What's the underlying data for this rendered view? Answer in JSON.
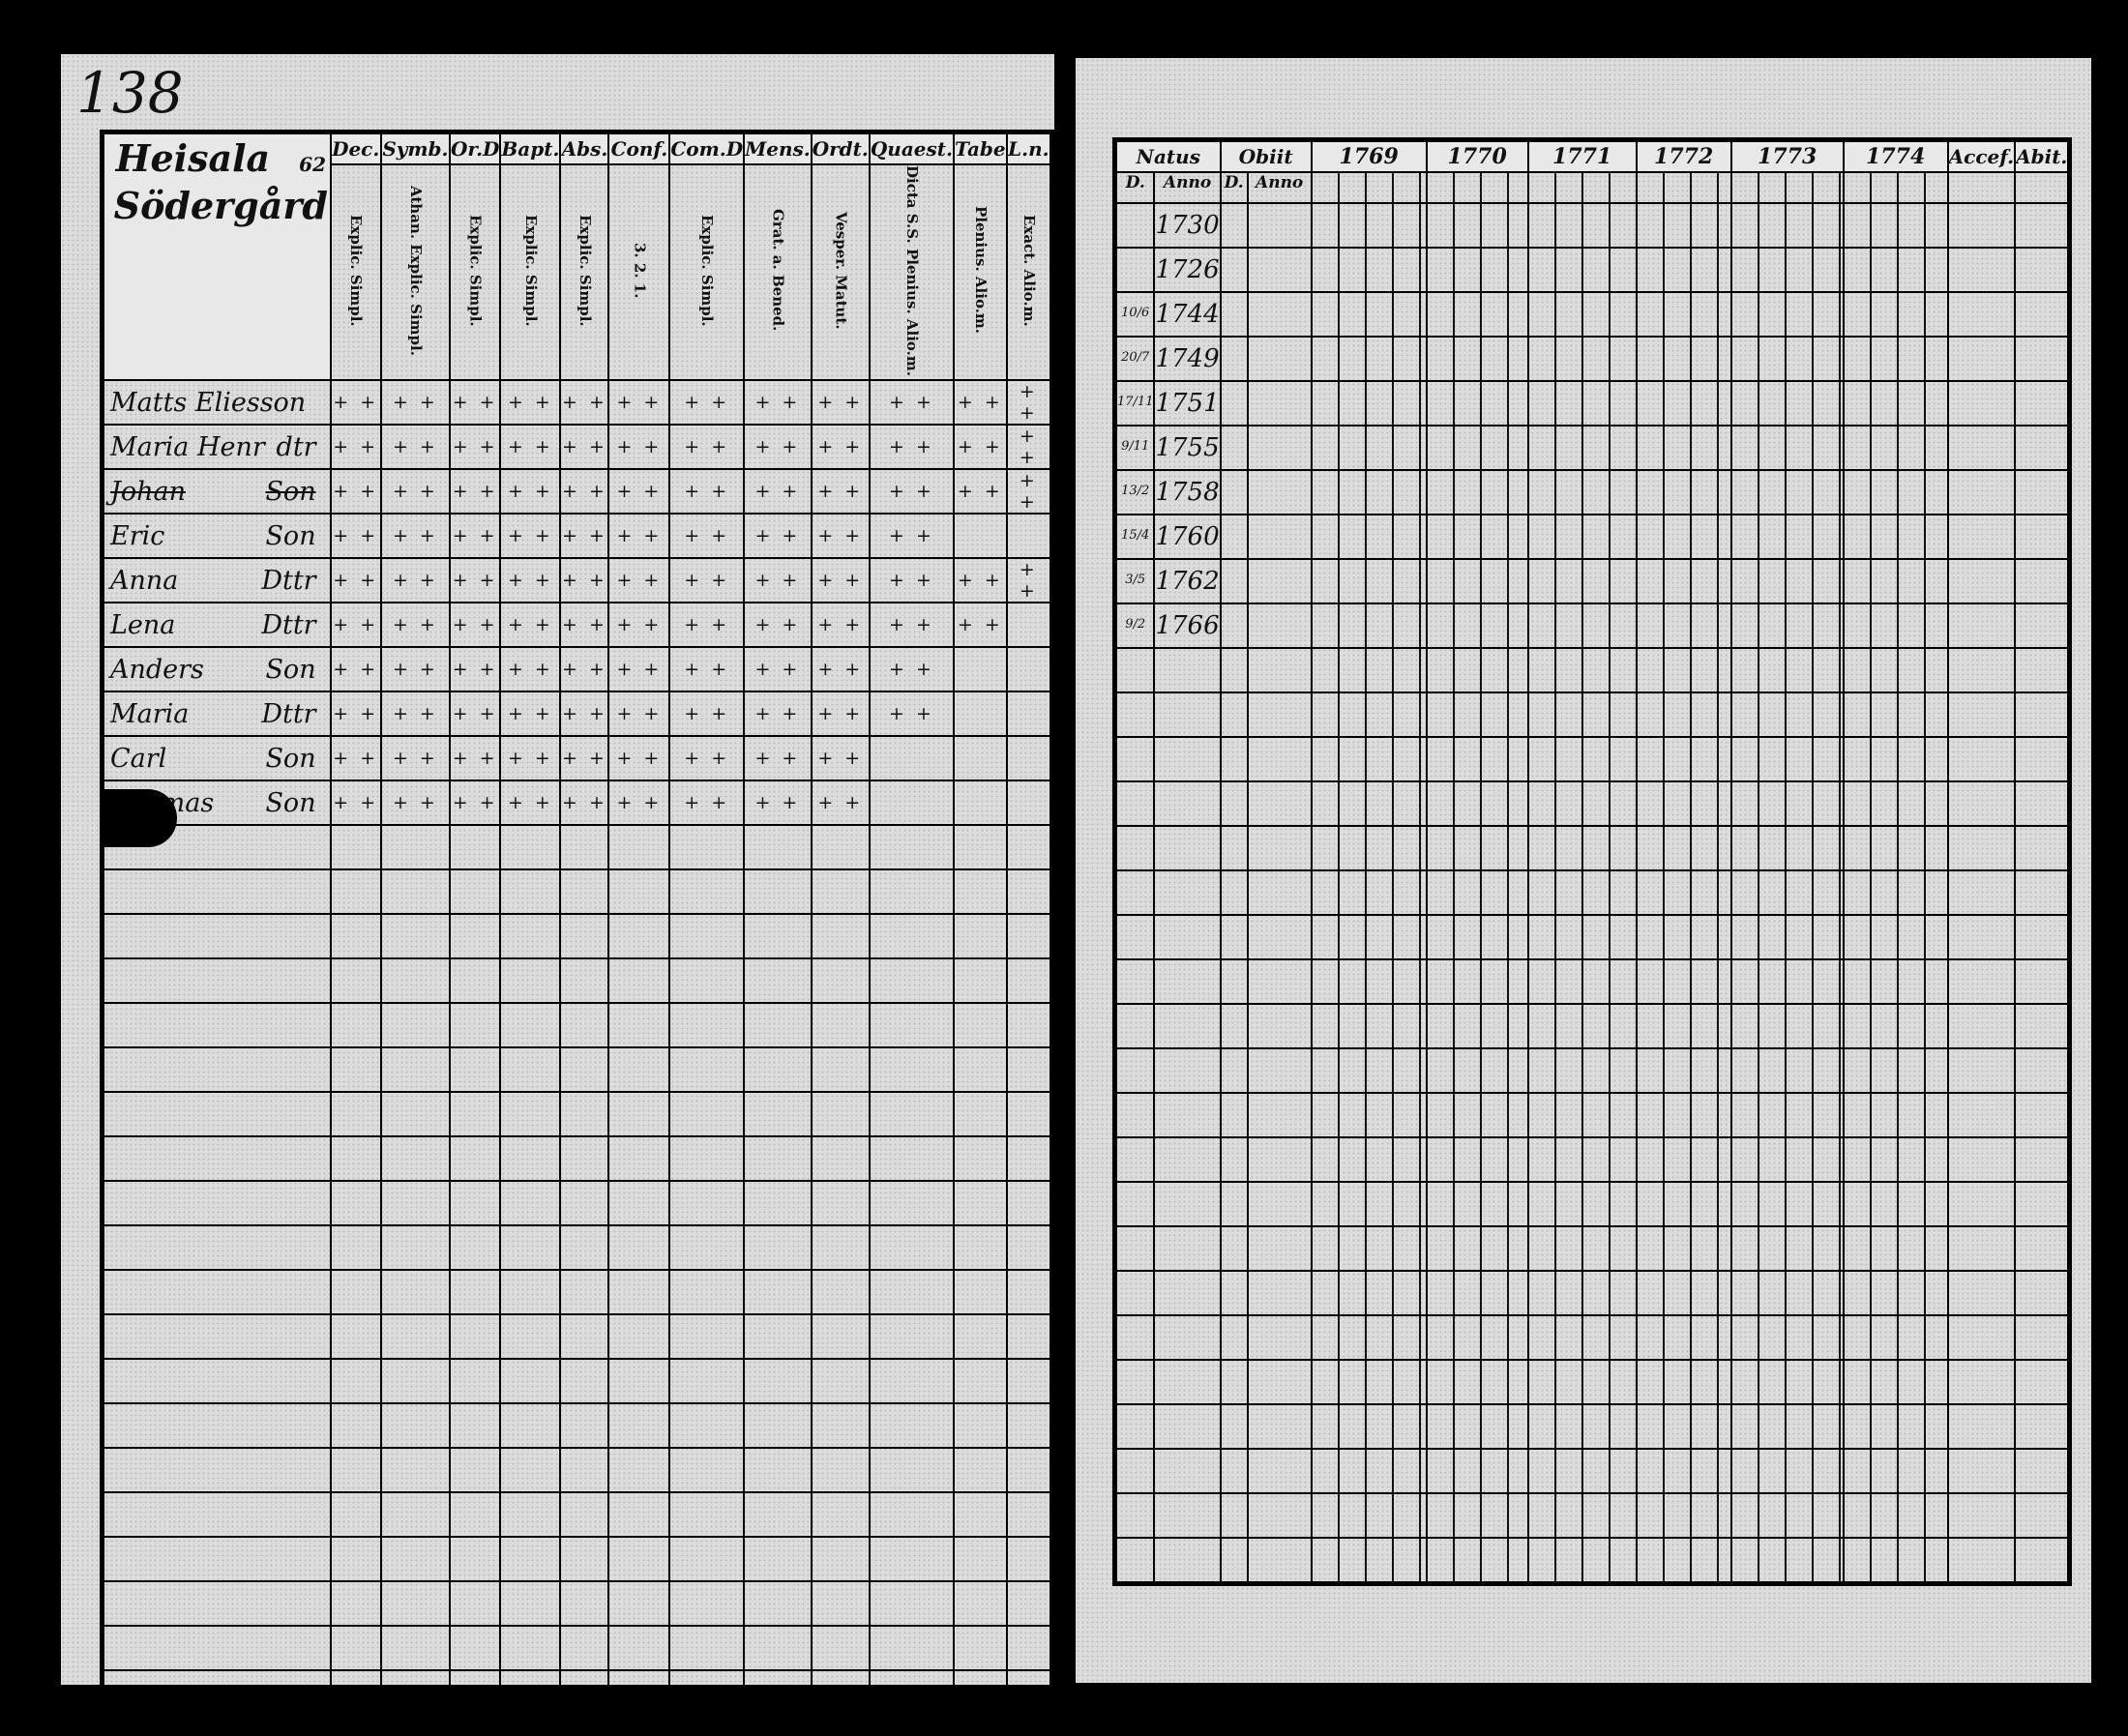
{
  "left_page": {
    "page_number": "138",
    "farm": {
      "name": "Heisala",
      "number": "62",
      "subname": "Södergård"
    },
    "columns": [
      {
        "head": "Dec.",
        "sub": "Explic. Simpl."
      },
      {
        "head": "Symb.",
        "sub": "Athan. Explic. Simpl."
      },
      {
        "head": "Or.D",
        "sub": "Explic. Simpl."
      },
      {
        "head": "Bapt.",
        "sub": "Explic. Simpl."
      },
      {
        "head": "Abs.",
        "sub": "Explic. Simpl."
      },
      {
        "head": "Conf.",
        "sub": "3. 2. 1."
      },
      {
        "head": "Com.D",
        "sub": "Explic. Simpl."
      },
      {
        "head": "Mens.",
        "sub": "Grat. a. Bened."
      },
      {
        "head": "Ordt.",
        "sub": "Vesper. Matut."
      },
      {
        "head": "Quaest.",
        "sub": "Dicta S.S. Plenius. Alio.m."
      },
      {
        "head": "Tabe",
        "sub": "Plenius. Alio.m."
      },
      {
        "head": "L.n.",
        "sub": "Exact. Alio.m."
      }
    ],
    "residents": [
      {
        "name": "Matts Eliesson",
        "relation": "",
        "struck": false,
        "marks": 12
      },
      {
        "name": "Maria Henr",
        "relation": "dtr",
        "struck": false,
        "marks": 12
      },
      {
        "name": "Johan",
        "relation": "Son",
        "struck": true,
        "marks": 12
      },
      {
        "name": "Eric",
        "relation": "Son",
        "struck": false,
        "marks": 10
      },
      {
        "name": "Anna",
        "relation": "Dttr",
        "struck": false,
        "marks": 12
      },
      {
        "name": "Lena",
        "relation": "Dttr",
        "struck": false,
        "marks": 11
      },
      {
        "name": "Anders",
        "relation": "Son",
        "struck": false,
        "marks": 10
      },
      {
        "name": "Maria",
        "relation": "Dttr",
        "struck": false,
        "marks": 10
      },
      {
        "name": "Carl",
        "relation": "Son",
        "struck": false,
        "marks": 9
      },
      {
        "name": "Thomas",
        "relation": "Son",
        "struck": false,
        "marks": 9
      }
    ]
  },
  "right_page": {
    "headers": {
      "natus": "Natus",
      "obiit": "Obiit",
      "day": "D.",
      "anno": "Anno",
      "accessit": "Accef.",
      "abiit": "Abit."
    },
    "years": [
      "1769",
      "1770",
      "1771",
      "1772",
      "1773",
      "1774"
    ],
    "births": [
      {
        "date": "",
        "year": "1730"
      },
      {
        "date": "",
        "year": "1726"
      },
      {
        "date": "10/6",
        "year": "1744"
      },
      {
        "date": "20/7",
        "year": "1749"
      },
      {
        "date": "17/11",
        "year": "1751"
      },
      {
        "date": "9/11",
        "year": "1755"
      },
      {
        "date": "13/2",
        "year": "1758"
      },
      {
        "date": "15/4",
        "year": "1760"
      },
      {
        "date": "3/5",
        "year": "1762"
      },
      {
        "date": "9/2",
        "year": "1766"
      }
    ]
  }
}
